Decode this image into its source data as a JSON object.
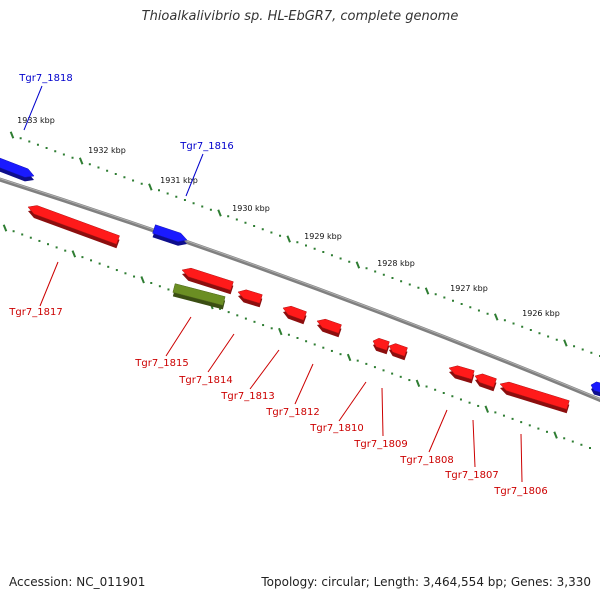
{
  "title": "Thioalkalivibrio sp. HL-EbGR7, complete genome",
  "footer": {
    "accession": "Accession: NC_011901",
    "topology": "Topology: circular; Length: 3,464,554 bp; Genes: 3,330"
  },
  "colors": {
    "forward": "#1a1aff",
    "reverse": "#ff1a1a",
    "rna": "#6b8e23",
    "backbone": "#808080",
    "ticks": "#2e7d32",
    "forward_label": "#0000cc",
    "reverse_label": "#cc0000"
  },
  "scale_labels": [
    "1933 kbp",
    "1932 kbp",
    "1931 kbp",
    "1930 kbp",
    "1929 kbp",
    "1928 kbp",
    "1927 kbp",
    "1926 kbp"
  ],
  "genes": [
    {
      "label": "Tgr7_1818",
      "strand": "forward",
      "type": "CDS"
    },
    {
      "label": "Tgr7_1816",
      "strand": "forward",
      "type": "CDS"
    },
    {
      "label": "Tgr7_1817",
      "strand": "reverse",
      "type": "CDS"
    },
    {
      "label": "Tgr7_1815",
      "strand": "reverse",
      "type": "RNA"
    },
    {
      "label": "Tgr7_1814",
      "strand": "reverse",
      "type": "CDS"
    },
    {
      "label": "Tgr7_1813",
      "strand": "reverse",
      "type": "CDS"
    },
    {
      "label": "Tgr7_1812",
      "strand": "reverse",
      "type": "CDS"
    },
    {
      "label": "Tgr7_1810",
      "strand": "reverse",
      "type": "CDS"
    },
    {
      "label": "Tgr7_1809",
      "strand": "reverse",
      "type": "CDS"
    },
    {
      "label": "Tgr7_1808",
      "strand": "reverse",
      "type": "CDS"
    },
    {
      "label": "Tgr7_1807",
      "strand": "reverse",
      "type": "CDS"
    },
    {
      "label": "Tgr7_1806",
      "strand": "reverse",
      "type": "CDS"
    }
  ]
}
